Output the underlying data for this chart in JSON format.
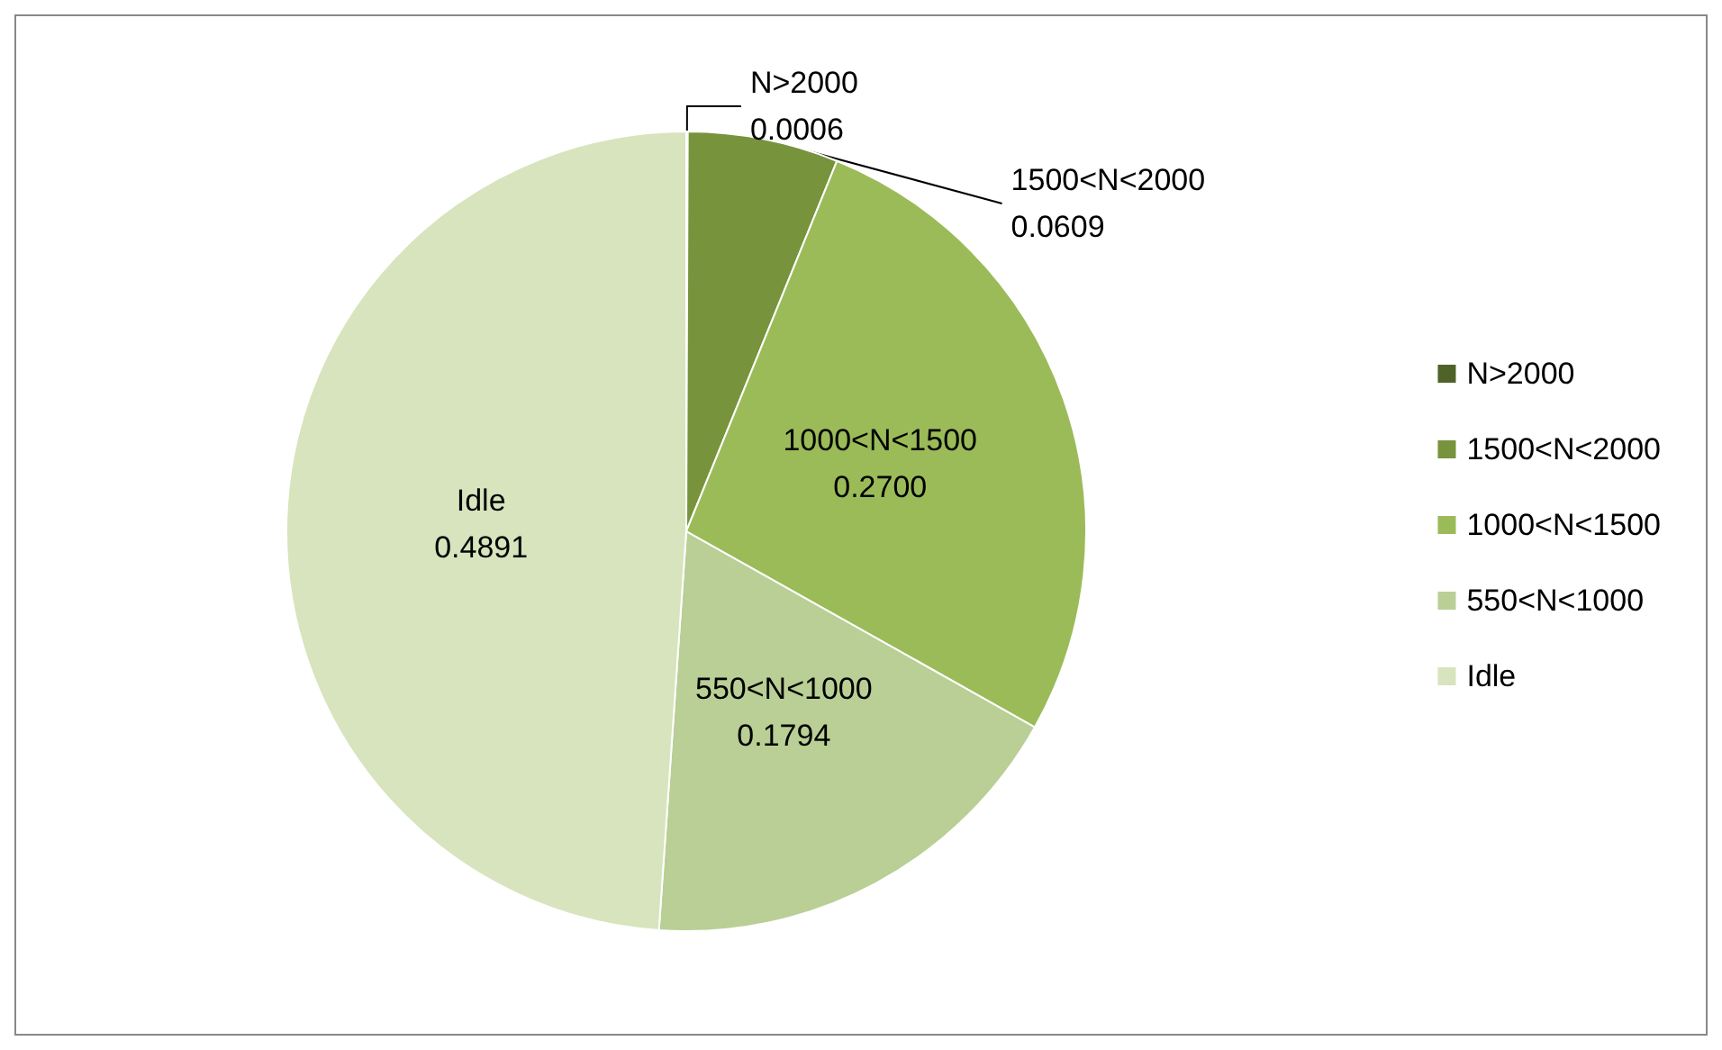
{
  "chart_data": {
    "type": "pie",
    "categories": [
      "N>2000",
      "1500<N<2000",
      "1000<N<1500",
      "550<N<1000",
      "Idle"
    ],
    "values": [
      0.0006,
      0.0609,
      0.27,
      0.1794,
      0.4891
    ],
    "value_labels": [
      "0.0006",
      "0.0609",
      "0.2700",
      "0.1794",
      "0.4891"
    ],
    "colors": [
      "#4f6228",
      "#77933c",
      "#9bbb59",
      "#b9cf95",
      "#d7e4bd"
    ],
    "legend": "right"
  }
}
